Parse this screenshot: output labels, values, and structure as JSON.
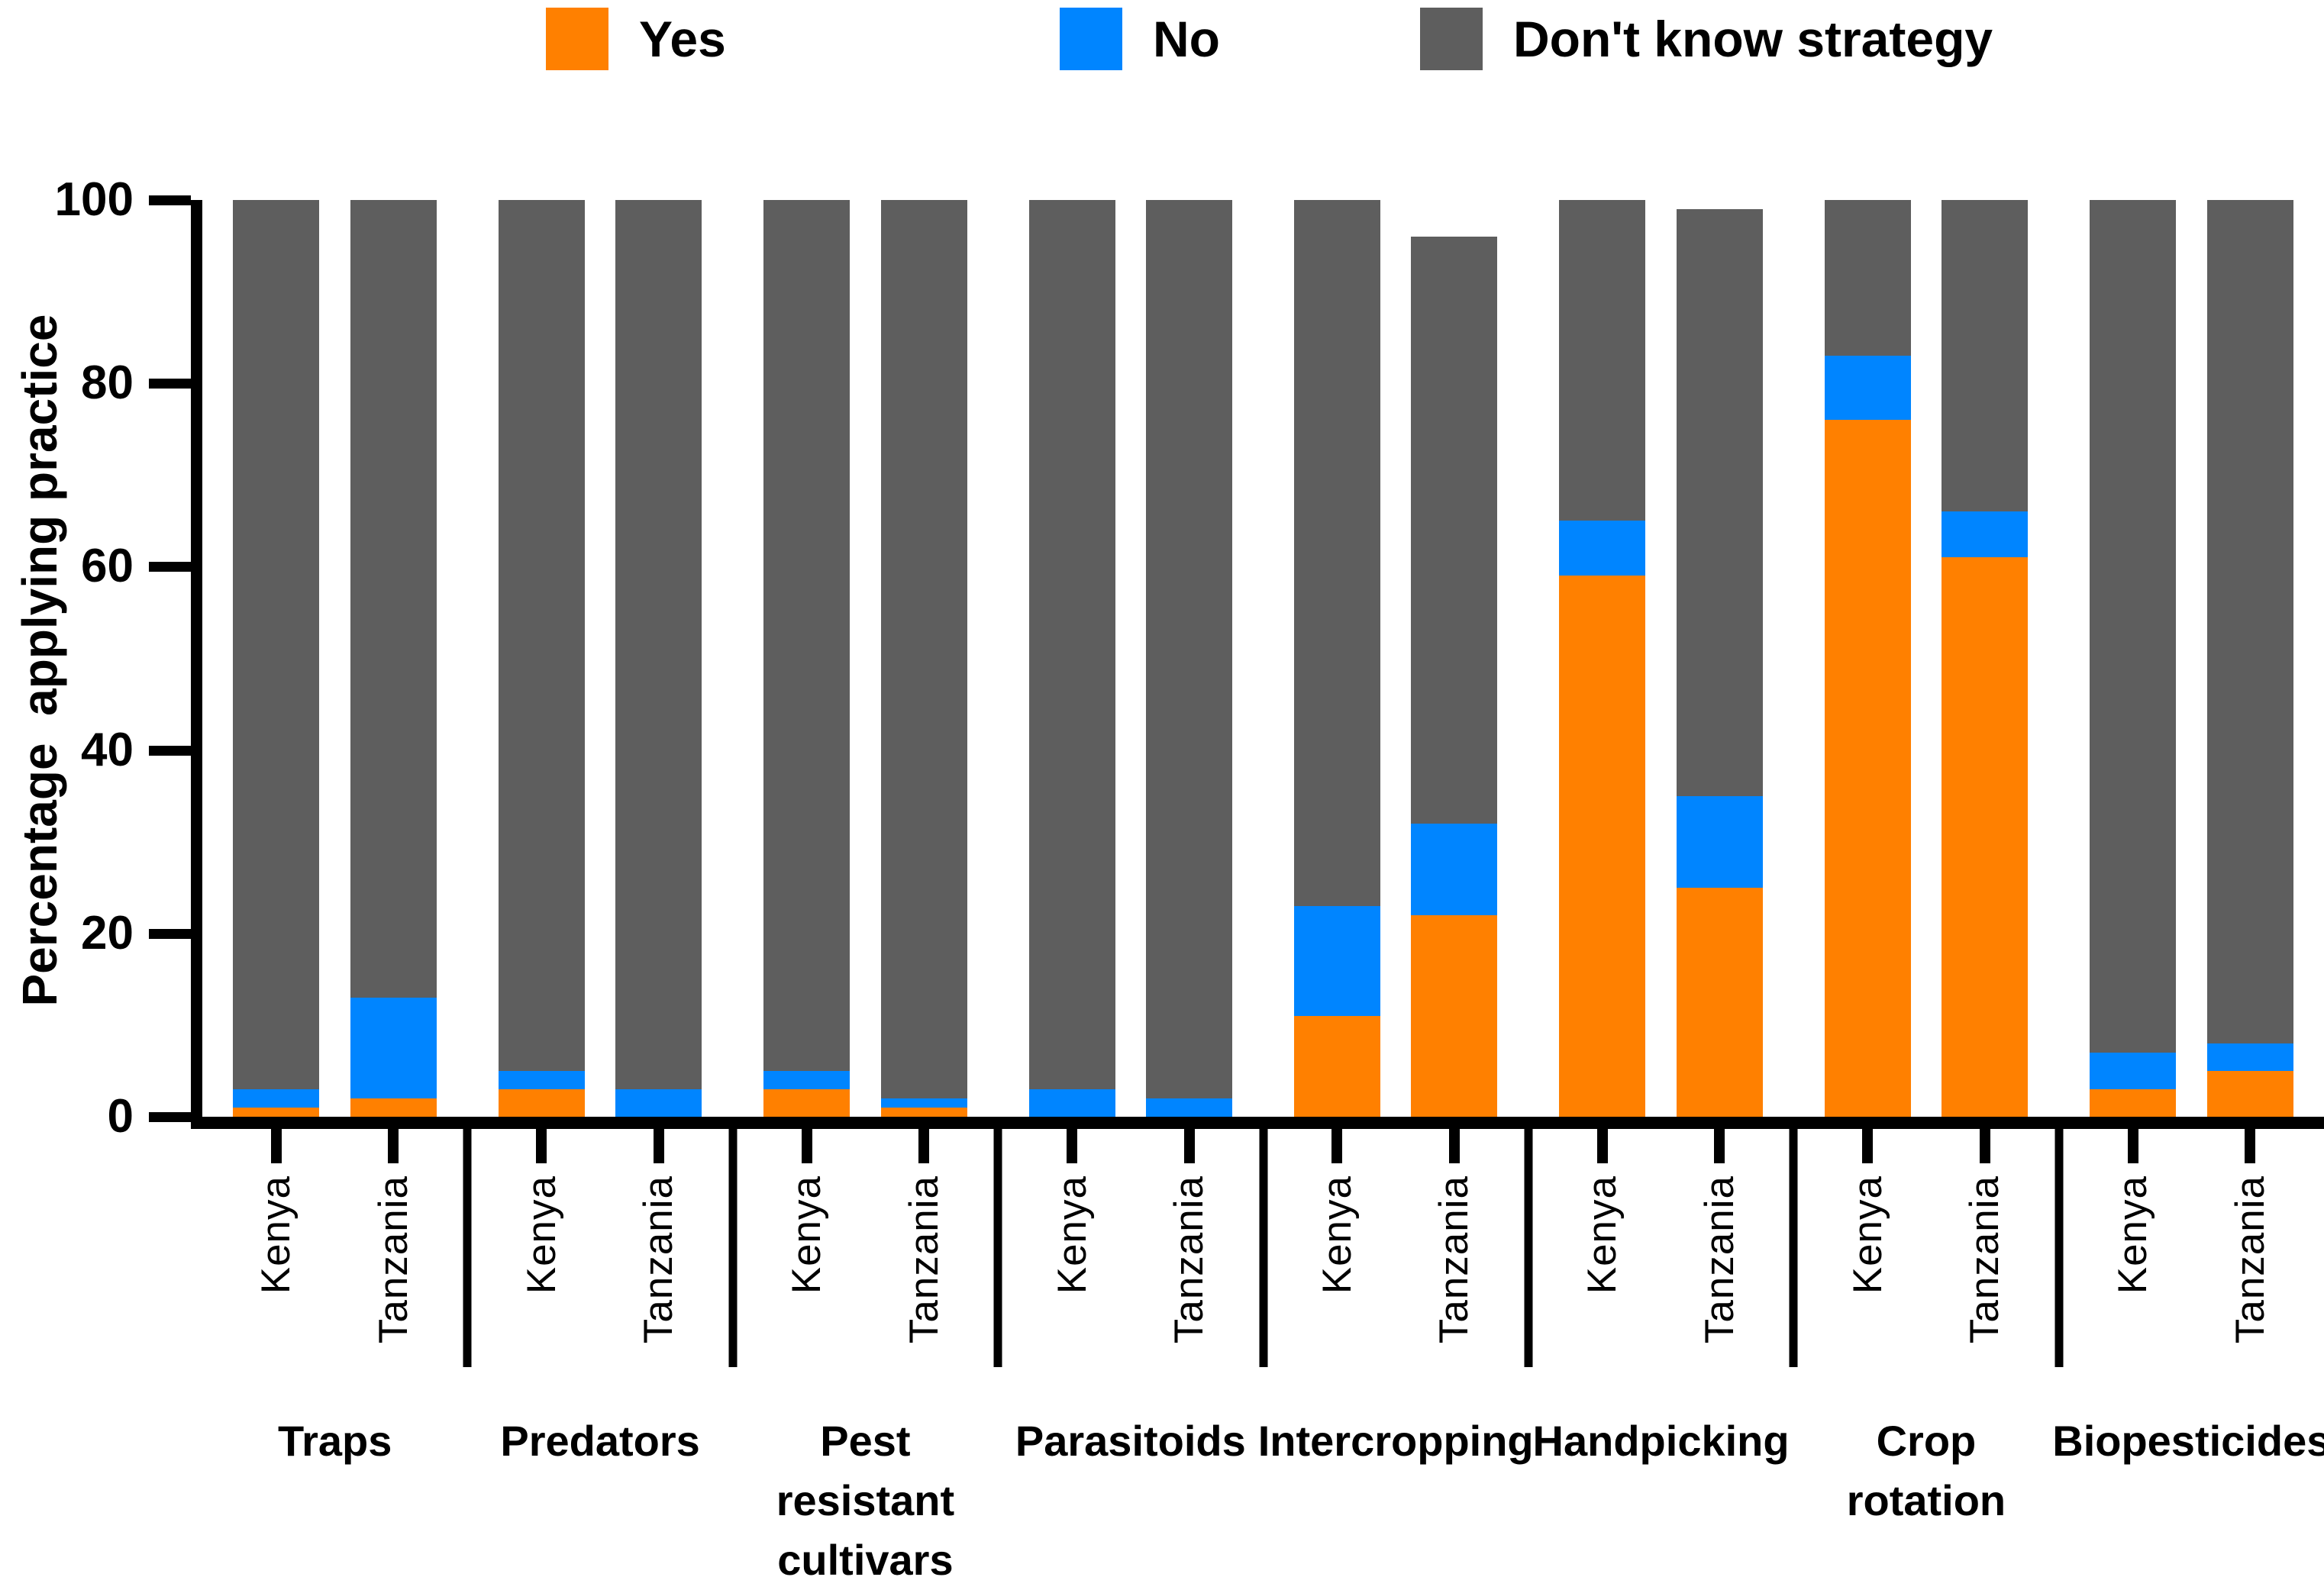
{
  "legend": {
    "items": [
      {
        "label": "Yes",
        "color": "#FF8000"
      },
      {
        "label": "No",
        "color": "#0085FF"
      },
      {
        "label": "Don't know strategy",
        "color": "#5E5E5E"
      }
    ]
  },
  "chart_data": {
    "type": "bar",
    "stacked": true,
    "ylabel": "Percentage  applying practice",
    "ylim": [
      0,
      100
    ],
    "yticks": [
      0,
      20,
      40,
      60,
      80,
      100
    ],
    "grid": false,
    "legend_position": "top",
    "series_names": [
      "Yes",
      "No",
      "Don't know strategy"
    ],
    "series_colors": [
      "#FF8000",
      "#0085FF",
      "#5E5E5E"
    ],
    "x_sublabels": [
      "Kenya",
      "Tanzania"
    ],
    "groups": [
      {
        "label": "Traps",
        "bars": [
          {
            "country": "Kenya",
            "values": [
              1,
              2,
              97
            ]
          },
          {
            "country": "Tanzania",
            "values": [
              2,
              11,
              87
            ]
          }
        ]
      },
      {
        "label": "Predators",
        "bars": [
          {
            "country": "Kenya",
            "values": [
              3,
              2,
              95
            ]
          },
          {
            "country": "Tanzania",
            "values": [
              0,
              3,
              97
            ]
          }
        ]
      },
      {
        "label": "Pest\nresistant\ncultivars",
        "bars": [
          {
            "country": "Kenya",
            "values": [
              3,
              2,
              95
            ]
          },
          {
            "country": "Tanzania",
            "values": [
              1,
              1,
              98
            ]
          }
        ]
      },
      {
        "label": "Parasitoids",
        "bars": [
          {
            "country": "Kenya",
            "values": [
              0,
              3,
              97
            ]
          },
          {
            "country": "Tanzania",
            "values": [
              0,
              2,
              98
            ]
          }
        ]
      },
      {
        "label": "Intercropping",
        "bars": [
          {
            "country": "Kenya",
            "values": [
              11,
              12,
              77
            ]
          },
          {
            "country": "Tanzania",
            "values": [
              22,
              10,
              64
            ]
          }
        ]
      },
      {
        "label": "Handpicking",
        "bars": [
          {
            "country": "Kenya",
            "values": [
              59,
              6,
              35
            ]
          },
          {
            "country": "Tanzania",
            "values": [
              25,
              10,
              64
            ]
          }
        ]
      },
      {
        "label": "Crop\nrotation",
        "bars": [
          {
            "country": "Kenya",
            "values": [
              76,
              7,
              17
            ]
          },
          {
            "country": "Tanzania",
            "values": [
              61,
              5,
              34
            ]
          }
        ]
      },
      {
        "label": "Biopesticides",
        "bars": [
          {
            "country": "Kenya",
            "values": [
              3,
              4,
              93
            ]
          },
          {
            "country": "Tanzania",
            "values": [
              5,
              3,
              92
            ]
          }
        ]
      }
    ]
  }
}
